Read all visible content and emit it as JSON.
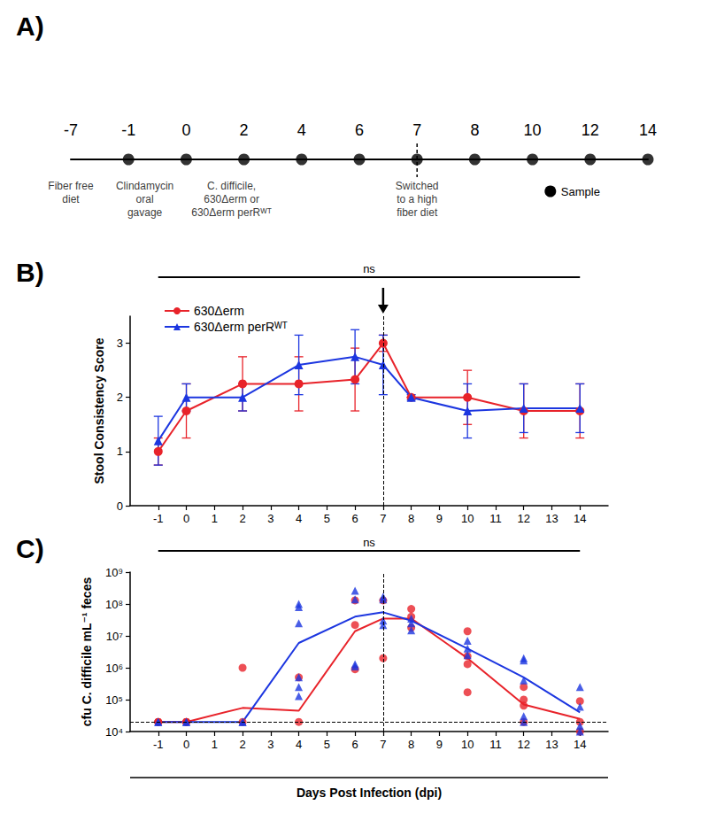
{
  "timeline": {
    "panel": "A)",
    "days": [
      -7,
      -1,
      0,
      2,
      4,
      6,
      7,
      8,
      10,
      12,
      14
    ],
    "sample_days": [
      -1,
      0,
      2,
      4,
      6,
      7,
      8,
      10,
      12,
      14
    ],
    "dashed_day": 7,
    "sample_label": "Sample",
    "events": [
      {
        "day": -7,
        "lines": [
          "Fiber free",
          "diet"
        ]
      },
      {
        "day": -1,
        "lines": [
          "Clindamycin",
          "oral",
          "gavage"
        ]
      },
      {
        "day": 0,
        "lines": [
          "C. difficile,",
          "630Δerm or",
          "630Δerm perRᵂᵀ"
        ]
      },
      {
        "day": 7,
        "lines": [
          "Switched",
          "to a high",
          "fiber diet"
        ]
      }
    ]
  },
  "chart_data": [
    {
      "type": "line",
      "panel": "B)",
      "y_label": "Stool Consistency Score",
      "annotations": [
        "ns"
      ],
      "x": [
        -1,
        0,
        2,
        4,
        6,
        7,
        8,
        10,
        12,
        14
      ],
      "series": [
        {
          "name": "630Δerm",
          "color": "#e8232a",
          "marker": "circle",
          "values": [
            1.0,
            1.75,
            2.25,
            2.25,
            2.33,
            3.0,
            2.0,
            2.0,
            1.75,
            1.75
          ],
          "errors": [
            0.25,
            0.5,
            0.5,
            0.5,
            0.58,
            0.15,
            0.0,
            0.5,
            0.5,
            0.5
          ]
        },
        {
          "name": "630Δerm perRᵂᵀ",
          "color": "#1c36e0",
          "marker": "triangle",
          "values": [
            1.2,
            2.0,
            2.0,
            2.6,
            2.75,
            2.6,
            2.0,
            1.75,
            1.8,
            1.8
          ],
          "errors": [
            0.45,
            0.25,
            0.25,
            0.55,
            0.5,
            0.55,
            0.05,
            0.5,
            0.45,
            0.45
          ]
        }
      ],
      "xlim": [
        -2,
        15
      ],
      "xticks": [
        -1,
        0,
        1,
        2,
        3,
        4,
        5,
        6,
        7,
        8,
        9,
        10,
        11,
        12,
        13,
        14
      ],
      "ylim": [
        0,
        3.5
      ],
      "yticks": [
        0,
        1,
        2,
        3
      ],
      "vline": 7,
      "legend": "upper left",
      "grid": false
    },
    {
      "type": "scatter",
      "panel": "C)",
      "y_label": "cfu C. difficile mL⁻¹ feces",
      "x_label": "Days Post Infection (dpi)",
      "annotations": [
        "ns"
      ],
      "log": "y",
      "series": [
        {
          "type": "scatter",
          "color": "#e8232a",
          "marker": "circle",
          "x": [
            -1,
            -1,
            -1,
            0,
            0,
            0,
            2,
            2,
            4,
            4,
            6,
            6,
            6,
            7,
            7,
            8,
            8,
            8,
            10,
            10,
            10,
            10,
            12,
            12,
            12,
            12,
            14,
            14,
            14
          ],
          "values": [
            20000,
            20000,
            20000,
            20000,
            20000,
            20000,
            1000000,
            20000,
            500000,
            20000,
            130000000,
            22000000,
            900000,
            130000000,
            2000000,
            70000000,
            40000000,
            18000000,
            14000000,
            2300000,
            1300000,
            170000,
            250000,
            100000,
            65000,
            20000,
            90000,
            20000,
            10000
          ]
        },
        {
          "type": "scatter",
          "color": "#1c36e0",
          "marker": "triangle",
          "x": [
            -1,
            -1,
            0,
            0,
            2,
            2,
            4,
            4,
            4,
            4,
            4,
            4,
            6,
            6,
            6,
            6,
            7,
            7,
            7,
            7,
            8,
            8,
            8,
            10,
            10,
            10,
            12,
            12,
            12,
            12,
            12,
            14,
            14,
            14,
            14
          ],
          "values": [
            20000,
            20000,
            20000,
            20000,
            20000,
            20000,
            100000000,
            80000000,
            25000000,
            500000,
            250000,
            130000,
            260000000,
            140000000,
            1300000,
            1100000,
            170000000,
            140000000,
            30000000,
            22000000,
            35000000,
            25000000,
            15000000,
            7000000,
            4000000,
            2500000,
            2000000,
            1700000,
            400000,
            30000,
            20000,
            250000,
            60000,
            15000,
            10000
          ]
        },
        {
          "type": "line",
          "color": "#e8232a",
          "x": [
            -1,
            0,
            2,
            4,
            6,
            7,
            8,
            10,
            12,
            14
          ],
          "values": [
            20000,
            20000,
            55000,
            45000,
            14000000,
            35000000,
            35000000,
            2000000,
            70000,
            25000
          ]
        },
        {
          "type": "line",
          "color": "#1c36e0",
          "x": [
            -1,
            0,
            2,
            4,
            6,
            7,
            8,
            10,
            12,
            14
          ],
          "values": [
            20000,
            20000,
            20000,
            6000000,
            40000000,
            55000000,
            30000000,
            4000000,
            500000,
            40000
          ]
        }
      ],
      "xlim": [
        -2,
        15
      ],
      "xticks": [
        -1,
        0,
        1,
        2,
        3,
        4,
        5,
        6,
        7,
        8,
        9,
        10,
        11,
        12,
        13,
        14
      ],
      "ylim": [
        10000,
        1000000000
      ],
      "yticks": [
        {
          "value": 10000,
          "label": "10⁴"
        },
        {
          "value": 100000,
          "label": "10⁵"
        },
        {
          "value": 1000000,
          "label": "10⁶"
        },
        {
          "value": 10000000,
          "label": "10⁷"
        },
        {
          "value": 100000000,
          "label": "10⁸"
        },
        {
          "value": 1000000000,
          "label": "10⁹"
        }
      ],
      "vline": 7,
      "hline": 20000,
      "grid": false
    }
  ]
}
